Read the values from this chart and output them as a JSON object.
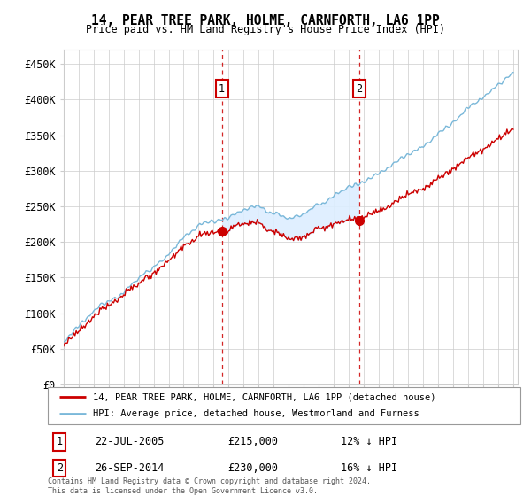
{
  "title": "14, PEAR TREE PARK, HOLME, CARNFORTH, LA6 1PP",
  "subtitle": "Price paid vs. HM Land Registry's House Price Index (HPI)",
  "ylim": [
    0,
    470000
  ],
  "yticks": [
    0,
    50000,
    100000,
    150000,
    200000,
    250000,
    300000,
    350000,
    400000,
    450000
  ],
  "ytick_labels": [
    "£0",
    "£50K",
    "£100K",
    "£150K",
    "£200K",
    "£250K",
    "£300K",
    "£350K",
    "£400K",
    "£450K"
  ],
  "sale1_date": 2005.55,
  "sale1_price": 215000,
  "sale2_date": 2014.73,
  "sale2_price": 230000,
  "legend_line1": "14, PEAR TREE PARK, HOLME, CARNFORTH, LA6 1PP (detached house)",
  "legend_line2": "HPI: Average price, detached house, Westmorland and Furness",
  "annot1_date": "22-JUL-2005",
  "annot1_price": "£215,000",
  "annot1_hpi": "12% ↓ HPI",
  "annot2_date": "26-SEP-2014",
  "annot2_price": "£230,000",
  "annot2_hpi": "16% ↓ HPI",
  "footer": "Contains HM Land Registry data © Crown copyright and database right 2024.\nThis data is licensed under the Open Government Licence v3.0.",
  "hpi_color": "#7ab8d9",
  "price_color": "#cc0000",
  "shade_color": "#ddeeff",
  "vline_color": "#cc0000",
  "background_color": "#ffffff",
  "grid_color": "#cccccc"
}
